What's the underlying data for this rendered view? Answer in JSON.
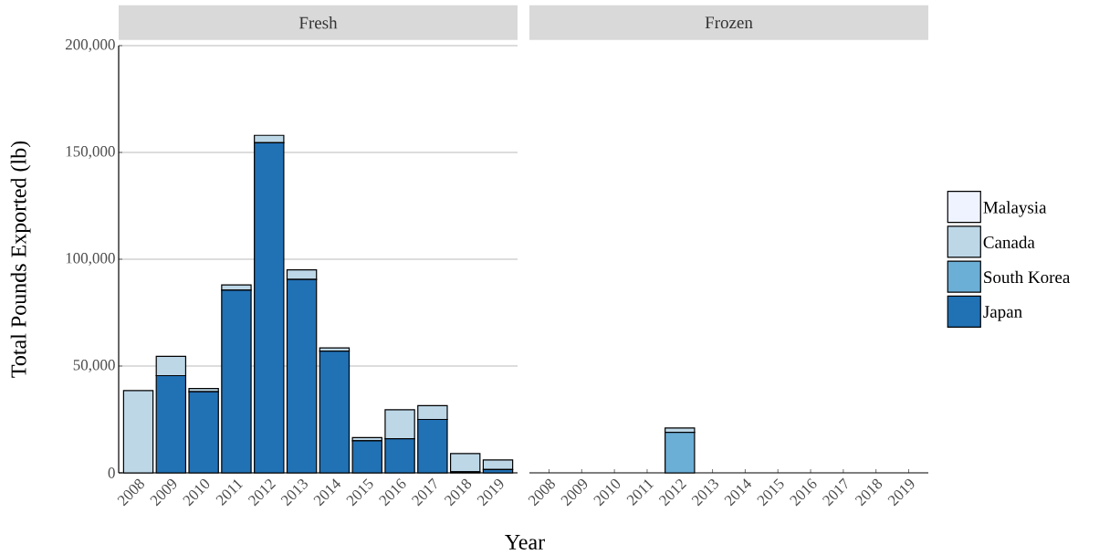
{
  "chart_data": [
    {
      "type": "bar",
      "title": "Fresh",
      "xlabel": "Year",
      "ylabel": "Total Pounds Exported (lb)",
      "stacked": true,
      "grid": "y",
      "categories": [
        "2008",
        "2009",
        "2010",
        "2011",
        "2012",
        "2013",
        "2014",
        "2015",
        "2016",
        "2017",
        "2018",
        "2019"
      ],
      "ylim": [
        0,
        200000
      ],
      "yticks": [
        0,
        {
          "value": 50000,
          "label": "50,000"
        },
        {
          "value": 100000,
          "label": "100,000"
        },
        {
          "value": 150000,
          "label": "150,000"
        },
        {
          "value": 200000,
          "label": "200,000"
        }
      ],
      "series": [
        {
          "color": "#2171b5",
          "values": [
            null,
            45500,
            38000,
            85500,
            154500,
            90500,
            57000,
            15000,
            16000,
            25000,
            500,
            1500
          ]
        },
        {
          "color": "#bdd7e7",
          "values": [
            38500,
            9000,
            1500,
            2500,
            3500,
            4500,
            1500,
            1500,
            13500,
            6500,
            8500,
            4500
          ]
        }
      ]
    },
    {
      "type": "bar",
      "title": "Frozen",
      "stacked": true,
      "grid": "y",
      "legend": "right",
      "tick_labels": "x",
      "categories": [
        "2008",
        "2009",
        "2010",
        "2011",
        "2012",
        "2013",
        "2014",
        "2015",
        "2016",
        "2017",
        "2018",
        "2019"
      ],
      "ylim": [
        0,
        200000
      ],
      "yticks": [
        {
          "value": 0,
          "label": null
        },
        {
          "value": 50000,
          "label": null
        },
        {
          "value": 100000,
          "label": null
        },
        {
          "value": 150000,
          "label": null
        },
        {
          "value": 200000,
          "label": null
        }
      ],
      "series": [
        {
          "name": "Japan",
          "color": "#2171b5",
          "values": [
            null,
            null,
            null,
            null,
            null,
            null,
            null,
            null,
            null,
            null,
            null,
            null
          ]
        },
        {
          "name": "South Korea",
          "color": "#6baed6",
          "values": [
            null,
            null,
            null,
            null,
            19000,
            null,
            null,
            null,
            null,
            null,
            null,
            null
          ]
        },
        {
          "name": "Canada",
          "color": "#bdd7e7",
          "values": [
            null,
            null,
            null,
            null,
            2000,
            null,
            null,
            null,
            null,
            null,
            null,
            null
          ]
        },
        {
          "name": "Malaysia",
          "color": "#eff3ff",
          "values": [
            null,
            null,
            null,
            null,
            null,
            null,
            null,
            null,
            null,
            null,
            null,
            null
          ]
        }
      ]
    }
  ]
}
